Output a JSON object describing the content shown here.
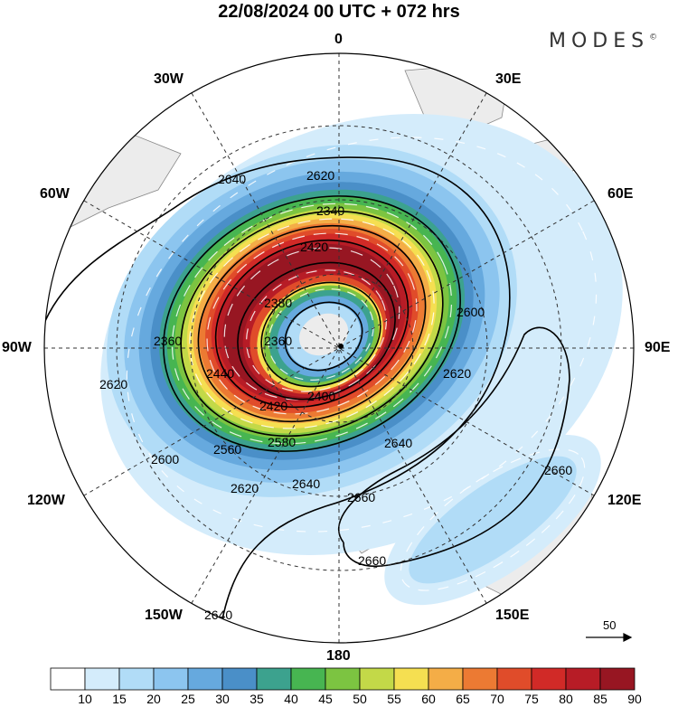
{
  "title": "22/08/2024  00 UTC  + 072 hrs",
  "logo": "MODES",
  "logo_mark": "©",
  "longitude_labels": {
    "l0": "0",
    "l30e": "30E",
    "l60e": "60E",
    "l90e": "90E",
    "l120e": "120E",
    "l150e": "150E",
    "l180": "180",
    "l150w": "150W",
    "l120w": "120W",
    "l90w": "90W",
    "l60w": "60W",
    "l30w": "30W"
  },
  "contour_labels": [
    "2620",
    "2640",
    "2340",
    "2420",
    "2380",
    "2360",
    "2400",
    "2420",
    "2440",
    "2560",
    "2580",
    "2600",
    "2620",
    "2640",
    "2660",
    "2660",
    "2640",
    "2600",
    "2620",
    "2620",
    "2360"
  ],
  "vector_scale_label": "50",
  "colorbar": {
    "labels": [
      "10",
      "15",
      "20",
      "25",
      "30",
      "35",
      "40",
      "45",
      "50",
      "55",
      "60",
      "65",
      "70",
      "75",
      "80",
      "85",
      "90"
    ],
    "colors": [
      "#ffffff",
      "#d4ecfb",
      "#b1dcf7",
      "#8cc5ef",
      "#66a9de",
      "#4a8fc8",
      "#3ca28e",
      "#47b551",
      "#7cc441",
      "#c3d948",
      "#f5df51",
      "#f4ad47",
      "#ec7a33",
      "#e04c2a",
      "#d12a27",
      "#b71c26",
      "#971622"
    ]
  }
}
